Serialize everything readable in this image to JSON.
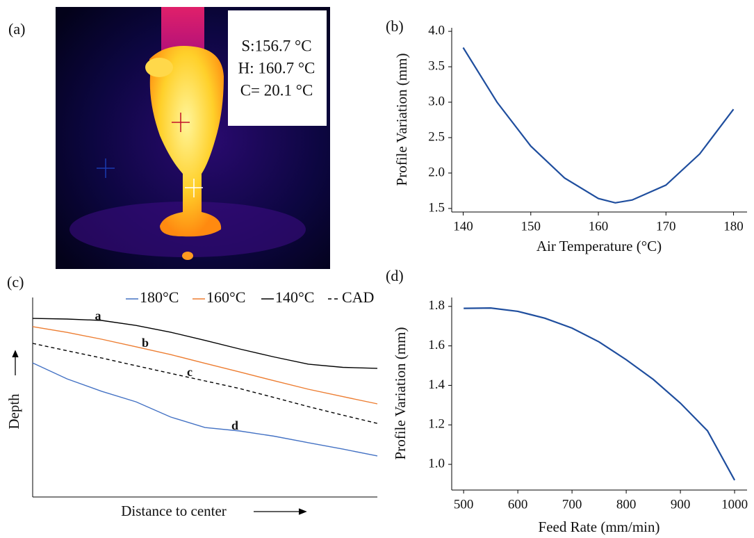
{
  "chart_data": [
    {
      "type": "image",
      "label": "(a)",
      "annotations": [
        "S:156.7 °C",
        "H: 160.7 °C",
        "C= 20.1 °C"
      ]
    },
    {
      "type": "line",
      "label": "(b)",
      "xlabel": "Air Temperature (°C)",
      "ylabel": "Profile Variation (mm)",
      "x": [
        140,
        145,
        150,
        155,
        160,
        162.5,
        165,
        170,
        175,
        180
      ],
      "values": [
        3.77,
        3.0,
        2.38,
        1.93,
        1.64,
        1.58,
        1.62,
        1.83,
        2.27,
        2.9
      ],
      "color": "#1f4e9e",
      "xlim": [
        138.3,
        182
      ],
      "ylim": [
        1.45,
        4.05
      ],
      "xticks": [
        140,
        150,
        160,
        170,
        180
      ],
      "yticks": [
        1.5,
        {
          "value": 2,
          "label": "2.0"
        },
        2.5,
        {
          "value": 3,
          "label": "3.0"
        },
        3.5,
        {
          "value": 4,
          "label": "4.0"
        }
      ]
    },
    {
      "type": "schematic-line",
      "label": "(c)",
      "xlabel": "Distance to center",
      "ylabel": "Depth",
      "x": [
        0,
        1,
        2,
        3,
        4,
        5,
        6,
        7,
        8,
        9,
        10
      ],
      "xlim": [
        0,
        10
      ],
      "ylim": [
        0,
        10
      ],
      "series": [
        {
          "name": "180°C",
          "color": "#4472c4",
          "dash": false,
          "values": [
            6.72,
            5.92,
            5.3,
            4.77,
            4.01,
            3.48,
            3.31,
            3.05,
            2.72,
            2.4,
            2.06
          ]
        },
        {
          "name": "160°C",
          "color": "#ed7d31",
          "dash": false,
          "values": [
            8.54,
            8.25,
            7.91,
            7.53,
            7.14,
            6.7,
            6.27,
            5.83,
            5.4,
            5.03,
            4.67
          ]
        },
        {
          "name": "140°C",
          "color": "#000000",
          "dash": false,
          "values": [
            8.95,
            8.92,
            8.85,
            8.6,
            8.26,
            7.85,
            7.42,
            7.02,
            6.66,
            6.5,
            6.45
          ]
        },
        {
          "name": "CAD",
          "color": "#000000",
          "dash": true,
          "values": [
            7.7,
            7.33,
            6.97,
            6.58,
            6.2,
            5.82,
            5.44,
            4.99,
            4.53,
            4.1,
            3.69
          ]
        }
      ],
      "annotations": [
        "a",
        "b",
        "c",
        "d"
      ]
    },
    {
      "type": "line",
      "label": "(d)",
      "xlabel": "Feed Rate (mm/min)",
      "ylabel": "Profile Variation (mm)",
      "x": [
        500,
        550,
        600,
        650,
        700,
        750,
        800,
        850,
        900,
        950,
        1000
      ],
      "values": [
        1.79,
        1.792,
        1.775,
        1.74,
        1.69,
        1.62,
        1.53,
        1.43,
        1.31,
        1.17,
        0.92
      ],
      "color": "#1f4e9e",
      "xlim": [
        478,
        1023
      ],
      "ylim": [
        0.87,
        1.845
      ],
      "xticks": [
        500,
        600,
        700,
        800,
        900,
        1000
      ],
      "yticks": [
        {
          "value": 1,
          "label": "1.0"
        },
        1.2,
        1.4,
        1.6,
        1.8
      ]
    }
  ]
}
